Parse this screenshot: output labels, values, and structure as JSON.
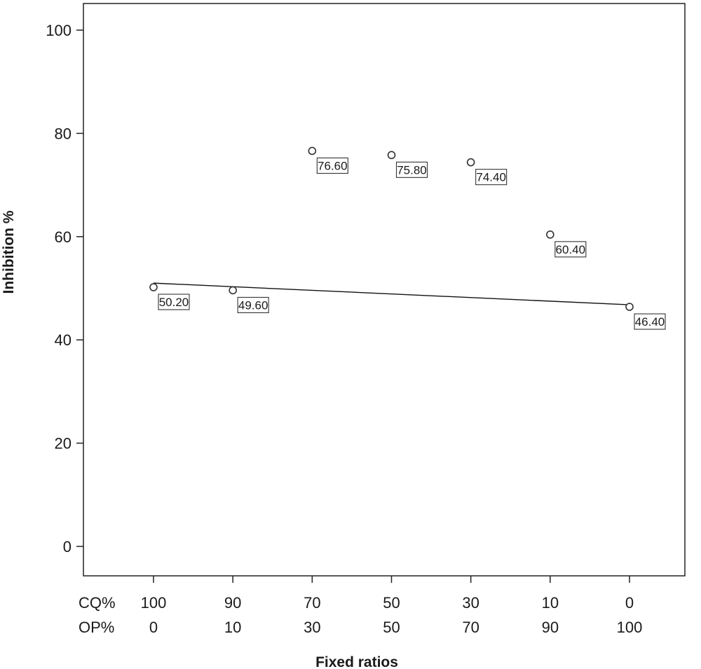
{
  "chart_data": {
    "type": "scatter",
    "title": "",
    "xlabel": "Fixed ratios",
    "ylabel": "Inhibition %",
    "ylim": [
      -5,
      105
    ],
    "yticks": [
      0,
      20,
      40,
      60,
      80,
      100
    ],
    "category_rows": [
      {
        "name": "CQ%",
        "labels": [
          "100",
          "90",
          "70",
          "50",
          "30",
          "10",
          "0"
        ]
      },
      {
        "name": "OP%",
        "labels": [
          "0",
          "10",
          "30",
          "50",
          "70",
          "90",
          "100"
        ]
      }
    ],
    "series": [
      {
        "name": "Inhibition",
        "values": [
          50.2,
          49.6,
          76.6,
          75.8,
          74.4,
          60.4,
          46.4
        ],
        "data_labels": [
          "50.20",
          "49.60",
          "76.60",
          "75.80",
          "74.40",
          "60.40",
          "46.40"
        ]
      }
    ],
    "fit_line": {
      "start_index": 0,
      "end_index": 6,
      "start_value": 51.0,
      "end_value": 46.8
    }
  }
}
